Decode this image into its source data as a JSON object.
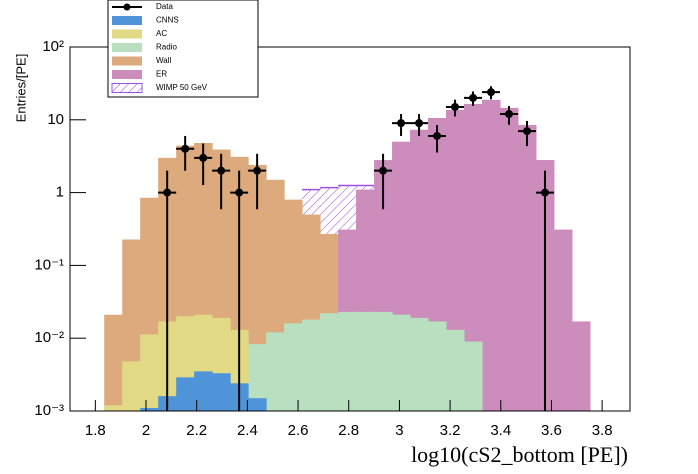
{
  "chart_data": {
    "type": "histogram",
    "x_label": "log10(cS2_bottom [PE])",
    "y_label": "Entries/[PE]",
    "log_y": true,
    "xlim": [
      1.7,
      3.91
    ],
    "ylim": [
      0.001,
      100
    ],
    "xticks": [
      1.8,
      2,
      2.2,
      2.4,
      2.6,
      2.8,
      3,
      3.2,
      3.4,
      3.6,
      3.8
    ],
    "yticks": [
      {
        "value": 0.001,
        "label": "10⁻³"
      },
      {
        "value": 0.01,
        "label": "10⁻²"
      },
      {
        "value": 0.1,
        "label": "10⁻¹"
      },
      1,
      10,
      {
        "value": 100,
        "label": "10²"
      }
    ],
    "bins": [
      1.835,
      1.906,
      1.977,
      2.048,
      2.119,
      2.19,
      2.261,
      2.332,
      2.403,
      2.474,
      2.545,
      2.616,
      2.687,
      2.758,
      2.829,
      2.9,
      2.971,
      3.042,
      3.113,
      3.184,
      3.255,
      3.326,
      3.397,
      3.468,
      3.539,
      3.61,
      3.681,
      3.752
    ],
    "series": [
      {
        "name": "WIMP 50 GeV",
        "color": "#a050e0",
        "style": "hatch",
        "values": [
          null,
          null,
          null,
          null,
          null,
          null,
          null,
          null,
          null,
          null,
          null,
          1.1,
          1.17,
          1.25,
          1.25,
          null,
          null,
          null,
          null,
          null,
          null,
          null,
          null,
          null,
          null,
          null,
          null
        ]
      },
      {
        "name": "Wall",
        "color": "#dcaa7c",
        "style": "fill",
        "values": [
          0.021,
          0.227,
          0.85,
          3.0,
          4.4,
          4.8,
          3.9,
          3.1,
          2.4,
          1.5,
          0.8,
          0.5,
          0.27,
          0.17,
          0.09,
          0.047,
          0.02,
          0.01,
          0.005,
          0.003,
          0.002,
          0.001,
          null,
          null,
          null,
          null,
          null
        ]
      },
      {
        "name": "ER",
        "color": "#cc8cbc",
        "style": "fill",
        "values": [
          null,
          null,
          null,
          null,
          null,
          null,
          null,
          null,
          null,
          null,
          null,
          null,
          null,
          0.31,
          1.1,
          2.8,
          5,
          7.3,
          10.6,
          13.7,
          16.5,
          18.8,
          14.6,
          8.5,
          2.8,
          0.31,
          0.017
        ]
      },
      {
        "name": "Radio",
        "color": "#b8e0c0",
        "style": "fill",
        "values": [
          null,
          null,
          null,
          null,
          null,
          null,
          null,
          0.003,
          0.0083,
          0.012,
          0.016,
          0.018,
          0.022,
          0.023,
          0.023,
          0.023,
          0.021,
          0.019,
          0.017,
          0.013,
          0.009,
          null,
          null,
          null,
          null,
          null,
          null
        ]
      },
      {
        "name": "AC",
        "color": "#e2d984",
        "style": "fill",
        "values": [
          0.0012,
          0.0048,
          0.0113,
          0.017,
          0.02,
          0.021,
          0.019,
          0.013,
          null,
          null,
          null,
          null,
          null,
          null,
          null,
          null,
          null,
          null,
          null,
          null,
          null,
          null,
          null,
          null,
          null,
          null,
          null
        ]
      },
      {
        "name": "CNNS",
        "color": "#4f94d8",
        "style": "fill",
        "values": [
          null,
          null,
          0.0011,
          0.0016,
          0.0029,
          0.0035,
          0.0033,
          0.0024,
          0.0015,
          null,
          null,
          null,
          null,
          null,
          null,
          null,
          null,
          null,
          null,
          null,
          null,
          null,
          null,
          null,
          null,
          null,
          null
        ]
      },
      {
        "name": "Data",
        "color": "#000000",
        "style": "points",
        "values": [
          null,
          null,
          null,
          1,
          4,
          3,
          2,
          1,
          2,
          null,
          null,
          null,
          null,
          null,
          null,
          2,
          9,
          9,
          6,
          15,
          20,
          24,
          12,
          7,
          1,
          null,
          null
        ],
        "errors": [
          null,
          null,
          null,
          1,
          2,
          1.73,
          1.41,
          1,
          1.41,
          null,
          null,
          null,
          null,
          null,
          null,
          1.41,
          3,
          3,
          2.45,
          3.87,
          4.47,
          4.9,
          3.46,
          2.65,
          1,
          null,
          null
        ]
      }
    ],
    "legend_order": [
      6,
      5,
      4,
      3,
      1,
      2,
      0
    ]
  }
}
